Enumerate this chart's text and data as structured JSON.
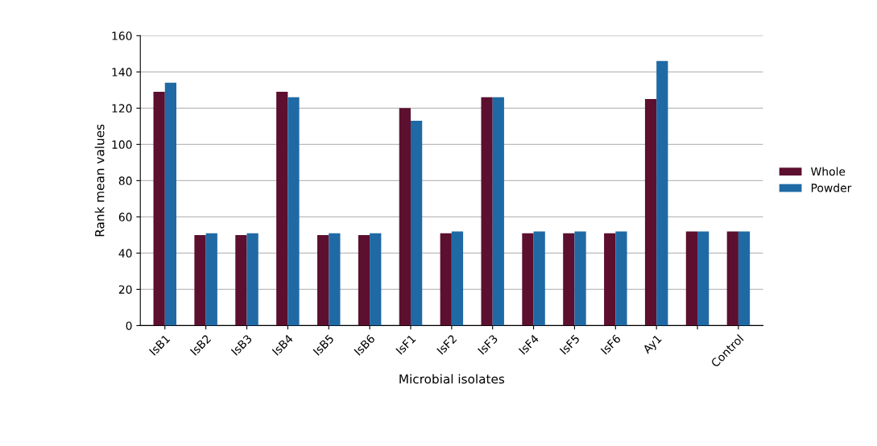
{
  "chart_data": {
    "type": "bar",
    "xlabel": "Microbial isolates",
    "ylabel": "Rank mean values",
    "categories": [
      "IsB1",
      "IsB2",
      "IsB3",
      "IsB4",
      "IsB5",
      "IsB6",
      "IsF1",
      "IsF2",
      "IsF3",
      "IsF4",
      "IsF5",
      "IsF6",
      "Ay1",
      null,
      "Control"
    ],
    "series": [
      {
        "name": "Whole",
        "color": "#5c0f2e",
        "values": [
          129,
          50,
          50,
          129,
          50,
          50,
          120,
          51,
          126,
          51,
          51,
          51,
          125,
          52,
          52
        ]
      },
      {
        "name": "Powder",
        "color": "#1f6aa5",
        "values": [
          134,
          51,
          51,
          126,
          51,
          51,
          113,
          52,
          126,
          52,
          52,
          52,
          146,
          52,
          52
        ]
      }
    ],
    "ylim": [
      0,
      160
    ],
    "yticks": [
      0,
      20,
      40,
      60,
      80,
      100,
      120,
      140,
      160
    ],
    "grid": "y",
    "legend": "right"
  }
}
